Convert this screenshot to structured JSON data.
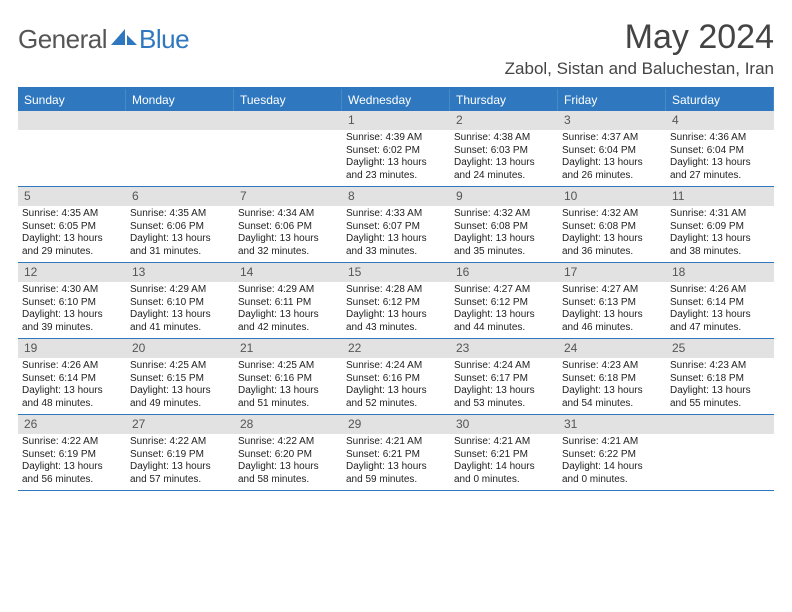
{
  "brand": {
    "part1": "General",
    "part2": "Blue"
  },
  "title": "May 2024",
  "location": "Zabol, Sistan and Baluchestan, Iran",
  "colors": {
    "accent": "#2f78bf",
    "date_bg": "#e2e2e2",
    "text": "#222222",
    "muted_text": "#555555",
    "bg": "#ffffff"
  },
  "day_labels": [
    "Sunday",
    "Monday",
    "Tuesday",
    "Wednesday",
    "Thursday",
    "Friday",
    "Saturday"
  ],
  "weeks": [
    [
      null,
      null,
      null,
      {
        "num": "1",
        "sunrise": "4:39 AM",
        "sunset": "6:02 PM",
        "daylight": "13 hours and 23 minutes."
      },
      {
        "num": "2",
        "sunrise": "4:38 AM",
        "sunset": "6:03 PM",
        "daylight": "13 hours and 24 minutes."
      },
      {
        "num": "3",
        "sunrise": "4:37 AM",
        "sunset": "6:04 PM",
        "daylight": "13 hours and 26 minutes."
      },
      {
        "num": "4",
        "sunrise": "4:36 AM",
        "sunset": "6:04 PM",
        "daylight": "13 hours and 27 minutes."
      }
    ],
    [
      {
        "num": "5",
        "sunrise": "4:35 AM",
        "sunset": "6:05 PM",
        "daylight": "13 hours and 29 minutes."
      },
      {
        "num": "6",
        "sunrise": "4:35 AM",
        "sunset": "6:06 PM",
        "daylight": "13 hours and 31 minutes."
      },
      {
        "num": "7",
        "sunrise": "4:34 AM",
        "sunset": "6:06 PM",
        "daylight": "13 hours and 32 minutes."
      },
      {
        "num": "8",
        "sunrise": "4:33 AM",
        "sunset": "6:07 PM",
        "daylight": "13 hours and 33 minutes."
      },
      {
        "num": "9",
        "sunrise": "4:32 AM",
        "sunset": "6:08 PM",
        "daylight": "13 hours and 35 minutes."
      },
      {
        "num": "10",
        "sunrise": "4:32 AM",
        "sunset": "6:08 PM",
        "daylight": "13 hours and 36 minutes."
      },
      {
        "num": "11",
        "sunrise": "4:31 AM",
        "sunset": "6:09 PM",
        "daylight": "13 hours and 38 minutes."
      }
    ],
    [
      {
        "num": "12",
        "sunrise": "4:30 AM",
        "sunset": "6:10 PM",
        "daylight": "13 hours and 39 minutes."
      },
      {
        "num": "13",
        "sunrise": "4:29 AM",
        "sunset": "6:10 PM",
        "daylight": "13 hours and 41 minutes."
      },
      {
        "num": "14",
        "sunrise": "4:29 AM",
        "sunset": "6:11 PM",
        "daylight": "13 hours and 42 minutes."
      },
      {
        "num": "15",
        "sunrise": "4:28 AM",
        "sunset": "6:12 PM",
        "daylight": "13 hours and 43 minutes."
      },
      {
        "num": "16",
        "sunrise": "4:27 AM",
        "sunset": "6:12 PM",
        "daylight": "13 hours and 44 minutes."
      },
      {
        "num": "17",
        "sunrise": "4:27 AM",
        "sunset": "6:13 PM",
        "daylight": "13 hours and 46 minutes."
      },
      {
        "num": "18",
        "sunrise": "4:26 AM",
        "sunset": "6:14 PM",
        "daylight": "13 hours and 47 minutes."
      }
    ],
    [
      {
        "num": "19",
        "sunrise": "4:26 AM",
        "sunset": "6:14 PM",
        "daylight": "13 hours and 48 minutes."
      },
      {
        "num": "20",
        "sunrise": "4:25 AM",
        "sunset": "6:15 PM",
        "daylight": "13 hours and 49 minutes."
      },
      {
        "num": "21",
        "sunrise": "4:25 AM",
        "sunset": "6:16 PM",
        "daylight": "13 hours and 51 minutes."
      },
      {
        "num": "22",
        "sunrise": "4:24 AM",
        "sunset": "6:16 PM",
        "daylight": "13 hours and 52 minutes."
      },
      {
        "num": "23",
        "sunrise": "4:24 AM",
        "sunset": "6:17 PM",
        "daylight": "13 hours and 53 minutes."
      },
      {
        "num": "24",
        "sunrise": "4:23 AM",
        "sunset": "6:18 PM",
        "daylight": "13 hours and 54 minutes."
      },
      {
        "num": "25",
        "sunrise": "4:23 AM",
        "sunset": "6:18 PM",
        "daylight": "13 hours and 55 minutes."
      }
    ],
    [
      {
        "num": "26",
        "sunrise": "4:22 AM",
        "sunset": "6:19 PM",
        "daylight": "13 hours and 56 minutes."
      },
      {
        "num": "27",
        "sunrise": "4:22 AM",
        "sunset": "6:19 PM",
        "daylight": "13 hours and 57 minutes."
      },
      {
        "num": "28",
        "sunrise": "4:22 AM",
        "sunset": "6:20 PM",
        "daylight": "13 hours and 58 minutes."
      },
      {
        "num": "29",
        "sunrise": "4:21 AM",
        "sunset": "6:21 PM",
        "daylight": "13 hours and 59 minutes."
      },
      {
        "num": "30",
        "sunrise": "4:21 AM",
        "sunset": "6:21 PM",
        "daylight": "14 hours and 0 minutes."
      },
      {
        "num": "31",
        "sunrise": "4:21 AM",
        "sunset": "6:22 PM",
        "daylight": "14 hours and 0 minutes."
      },
      null
    ]
  ],
  "labels": {
    "sunrise": "Sunrise:",
    "sunset": "Sunset:",
    "daylight": "Daylight:"
  }
}
